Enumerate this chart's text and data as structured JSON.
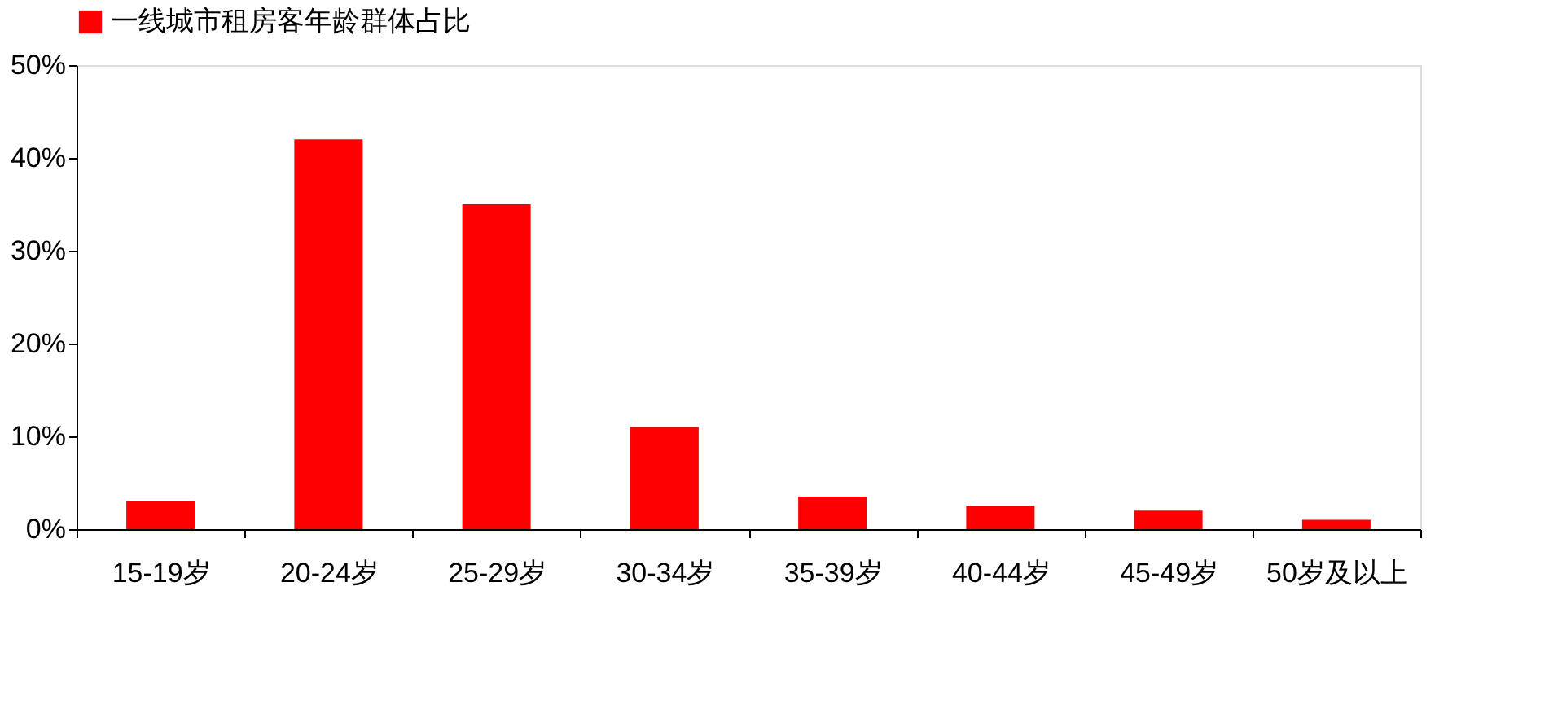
{
  "chart_data": {
    "type": "bar",
    "categories": [
      "15-19岁",
      "20-24岁",
      "25-29岁",
      "30-34岁",
      "35-39岁",
      "40-44岁",
      "45-49岁",
      "50岁及以上"
    ],
    "series": [
      {
        "name": "一线城市租房客年龄群体占比",
        "color": "#ff0000",
        "values": [
          3,
          42,
          35,
          11,
          3.5,
          2.5,
          2,
          1
        ]
      }
    ],
    "ylim": [
      0,
      50
    ],
    "yticks": [
      {
        "value": 0,
        "label": "0%"
      },
      {
        "value": 10,
        "label": "10%"
      },
      {
        "value": 20,
        "label": "20%"
      },
      {
        "value": 30,
        "label": "30%"
      },
      {
        "value": 40,
        "label": "40%"
      },
      {
        "value": 50,
        "label": "50%"
      }
    ],
    "grid": false,
    "legend": "top"
  }
}
